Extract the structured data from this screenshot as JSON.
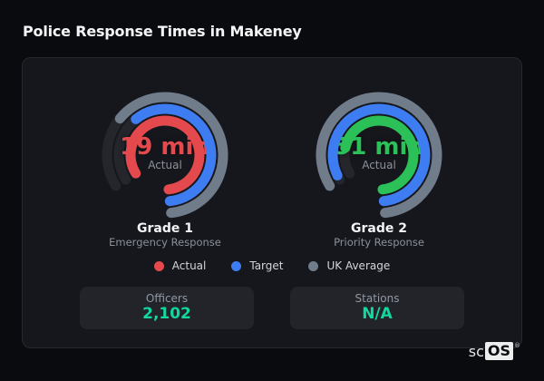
{
  "page": {
    "title": "Police Response Times in Makeney"
  },
  "chart_data": [
    {
      "type": "gauge",
      "title": "Grade 1",
      "subtitle": "Emergency Response",
      "center_value": "19 min",
      "center_label": "Actual",
      "actual_minutes": 19,
      "value_color": "#e4494e",
      "start_angle_deg": 238,
      "span_deg": 296,
      "anchor": "end",
      "rings": [
        {
          "name": "UK Average",
          "color": "#717c8b",
          "fill": 0.76,
          "radius": 64
        },
        {
          "name": "Target",
          "color": "#3e7cf2",
          "fill": 0.72,
          "radius": 51
        },
        {
          "name": "Actual",
          "color": "#e4494e",
          "fill": 1.0,
          "radius": 38
        }
      ]
    },
    {
      "type": "gauge",
      "title": "Grade 2",
      "subtitle": "Priority Response",
      "center_value": "51 min",
      "center_label": "Actual",
      "actual_minutes": 51,
      "value_color": "#2bc158",
      "start_angle_deg": 238,
      "span_deg": 296,
      "anchor": "end",
      "rings": [
        {
          "name": "UK Average",
          "color": "#717c8b",
          "fill": 1.0,
          "radius": 64
        },
        {
          "name": "Target",
          "color": "#3e7cf2",
          "fill": 0.98,
          "radius": 51
        },
        {
          "name": "Actual",
          "color": "#2bc158",
          "fill": 0.85,
          "radius": 38
        }
      ]
    }
  ],
  "legend": [
    {
      "label": "Actual",
      "color": "#e4494e"
    },
    {
      "label": "Target",
      "color": "#3e7cf2"
    },
    {
      "label": "UK Average",
      "color": "#717c8b"
    }
  ],
  "stats": [
    {
      "label": "Officers",
      "value": "2,102"
    },
    {
      "label": "Stations",
      "value": "N/A"
    }
  ],
  "brand": {
    "prefix": "sc",
    "suffix": "OS",
    "registered": "®"
  },
  "colors": {
    "page_bg": "#0a0b0e",
    "panel_bg": "#16171c",
    "card_bg": "#22242a",
    "track": "#24262c",
    "accent_teal": "#12d7a0"
  }
}
